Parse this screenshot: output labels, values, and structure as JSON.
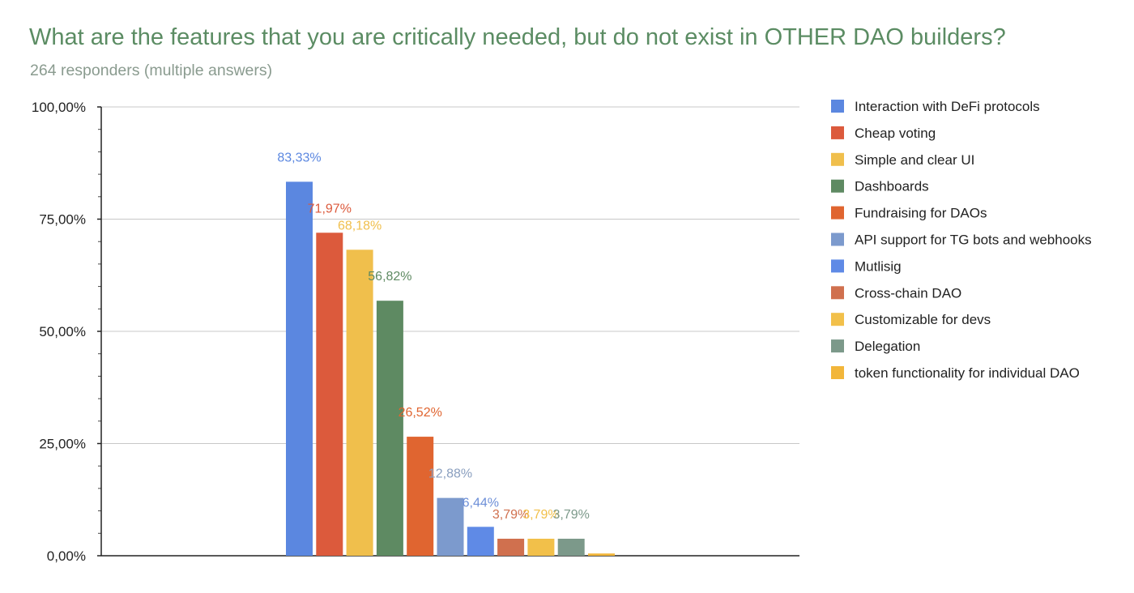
{
  "chart_data": {
    "type": "bar",
    "title": "What are the features that you are critically needed, but do not exist in OTHER DAO builders?",
    "subtitle": "264 responders (multiple answers)",
    "ylim": [
      0,
      100
    ],
    "y_ticks": [
      {
        "value": 0,
        "label": "0,00%"
      },
      {
        "value": 25,
        "label": "25,00%"
      },
      {
        "value": 50,
        "label": "50,00%"
      },
      {
        "value": 75,
        "label": "75,00%"
      },
      {
        "value": 100,
        "label": "100,00%"
      }
    ],
    "grid": true,
    "legend_position": "right",
    "series": [
      {
        "name": "Interaction with DeFi protocols",
        "value": 83.33,
        "label": "83,33%",
        "color": "#5b87e0",
        "label_color": "#5b87e0"
      },
      {
        "name": "Cheap voting",
        "value": 71.97,
        "label": "71,97%",
        "color": "#dc5a3c",
        "label_color": "#dc5a3c"
      },
      {
        "name": "Simple and clear UI",
        "value": 68.18,
        "label": "68,18%",
        "color": "#f0bf4c",
        "label_color": "#f0bf4c"
      },
      {
        "name": "Dashboards",
        "value": 56.82,
        "label": "56,82%",
        "color": "#5e8a62",
        "label_color": "#5e8a62"
      },
      {
        "name": "Fundraising for DAOs",
        "value": 26.52,
        "label": "26,52%",
        "color": "#e06530",
        "label_color": "#e06530"
      },
      {
        "name": "API support for TG bots and webhooks",
        "value": 12.88,
        "label": "12,88%",
        "color": "#7c9acd",
        "label_color": "#8a9fbf"
      },
      {
        "name": "Mutlisig",
        "value": 6.44,
        "label": "6,44%",
        "color": "#5f8ae6",
        "label_color": "#6d8fd8"
      },
      {
        "name": "Cross-chain DAO",
        "value": 3.79,
        "label": "3,79%",
        "color": "#d0704e",
        "label_color": "#d0704e"
      },
      {
        "name": "Customizable for devs",
        "value": 3.79,
        "label": "3,79%",
        "color": "#f2c04a",
        "label_color": "#f2c04a"
      },
      {
        "name": "Delegation",
        "value": 3.79,
        "label": "3,79%",
        "color": "#7c998a",
        "label_color": "#7c998a"
      },
      {
        "name": "token functionality for individual DAO",
        "value": 0.5,
        "label": "",
        "color": "#f2b63a",
        "label_color": "#f2b63a"
      }
    ]
  }
}
